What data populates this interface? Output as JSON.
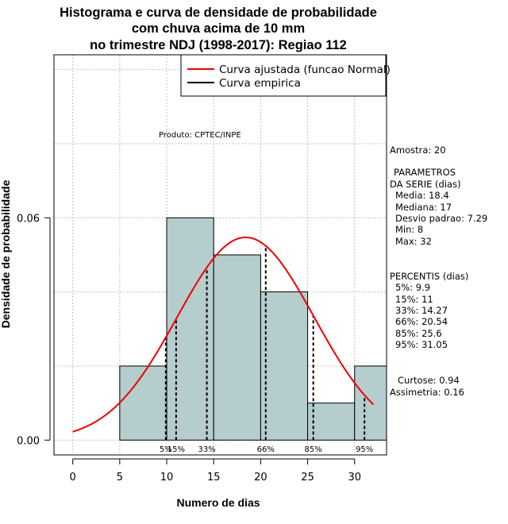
{
  "chart_data": {
    "type": "histogram",
    "title_lines": [
      "Histograma e curva de densidade de probabilidade",
      "com chuva acima de 10 mm",
      "no trimestre NDJ (1998-2017): Regiao 112"
    ],
    "xlabel": "Numero de dias",
    "ylabel": "Densidade de probabilidade",
    "xlim": [
      -2.0,
      33.4
    ],
    "ylim": [
      -0.004,
      0.104
    ],
    "x_ticks": [
      0,
      5,
      10,
      15,
      20,
      25,
      30
    ],
    "y_ticks": [
      0.0,
      0.06
    ],
    "y_tick_labels": [
      "0.00",
      "0.06"
    ],
    "grid_y": [
      0.0,
      0.02,
      0.04,
      0.06,
      0.08,
      0.1
    ],
    "grid_x": [
      0,
      5,
      10,
      15,
      20,
      25,
      30
    ],
    "bins": [
      {
        "start": 5,
        "end": 10,
        "density": 0.02
      },
      {
        "start": 10,
        "end": 15,
        "density": 0.06
      },
      {
        "start": 15,
        "end": 20,
        "density": 0.05
      },
      {
        "start": 20,
        "end": 25,
        "density": 0.04
      },
      {
        "start": 25,
        "end": 30,
        "density": 0.01
      },
      {
        "start": 30,
        "end": 35,
        "density": 0.02
      }
    ],
    "normal_fit": {
      "mean": 18.4,
      "sd": 7.29,
      "x_from": 0,
      "x_to": 32
    },
    "percentile_markers": [
      {
        "label": "5%",
        "x": 9.9
      },
      {
        "label": "15%",
        "x": 11
      },
      {
        "label": "33%",
        "x": 14.27
      },
      {
        "label": "66%",
        "x": 20.54
      },
      {
        "label": "85%",
        "x": 25.6
      },
      {
        "label": "95%",
        "x": 31.05
      }
    ],
    "legend": {
      "position": "top-right",
      "entries": [
        {
          "label": "Curva ajustada (funcao Normal)",
          "color": "#ee0000"
        },
        {
          "label": "Curva empirica",
          "color": "#000000"
        }
      ]
    },
    "annotation": "Produto: CPTEC/INPE",
    "colors": {
      "bar_fill": "#b5cdcc",
      "curve": "#ee0000",
      "grid": "#c0c0c0"
    }
  },
  "side_panel": {
    "amostra": "Amostra: 20",
    "param_title_1": "PARAMETROS",
    "param_title_2": "DA SERIE (dias)",
    "params": [
      "Media: 18.4",
      "Mediana: 17",
      "Desvio padrao: 7.29",
      "Min: 8",
      "Max: 32"
    ],
    "percentis_title": "PERCENTIS (dias)",
    "percentis": [
      "5%: 9.9",
      "15%: 11",
      "33%: 14.27",
      "66%: 20.54",
      "85%: 25.6",
      "95%: 31.05"
    ],
    "curtose": "Curtose: 0.94",
    "assimetria": "Assimetria: 0.16"
  }
}
